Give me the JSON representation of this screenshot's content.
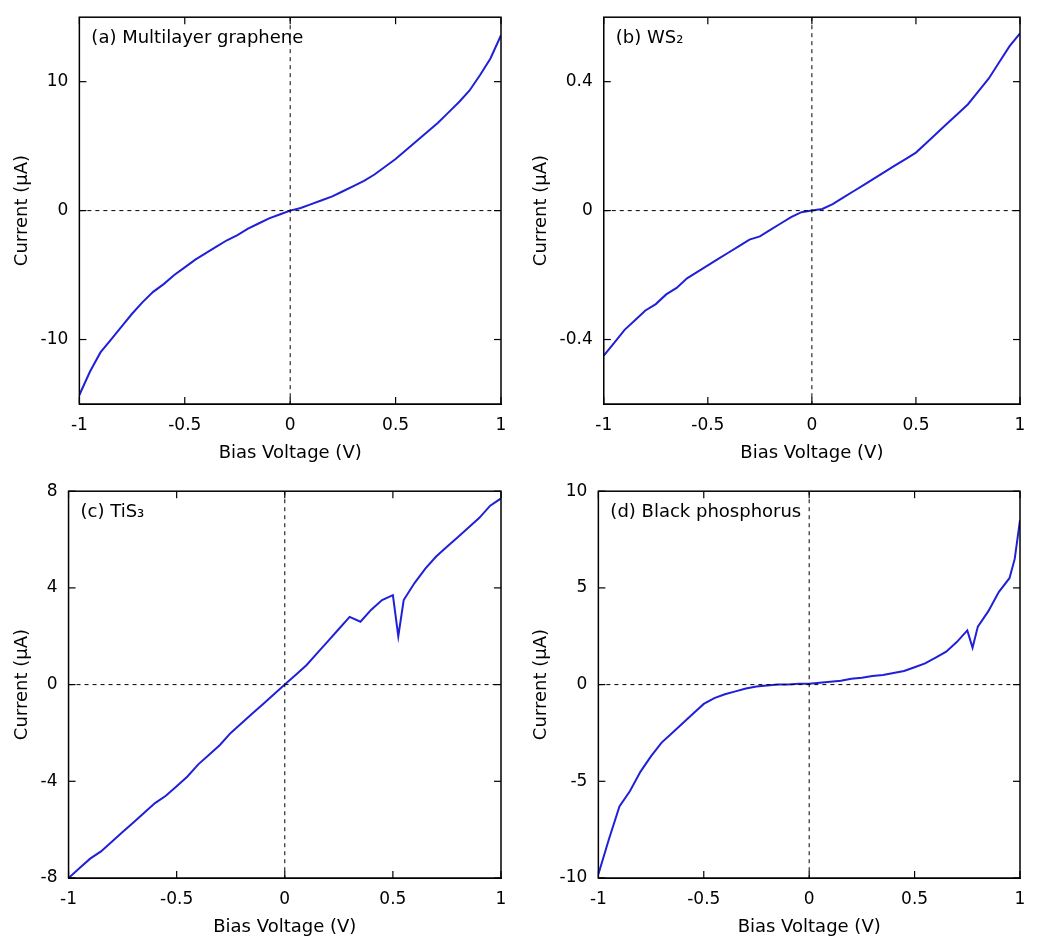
{
  "chart_data": [
    {
      "type": "line",
      "title": "(a) Multilayer graphene",
      "x_label": "Bias Voltage (V)",
      "y_label": "Current (μA)",
      "color": "#2020d8",
      "xlim": [
        -1,
        1
      ],
      "xticks": [
        -1,
        -0.5,
        0,
        0.5,
        1
      ],
      "ylim": [
        -15,
        15
      ],
      "yticks": [
        -10,
        0,
        10
      ],
      "ref_lines": {
        "x": 0,
        "y": 0
      },
      "x": [
        -1,
        -0.95,
        -0.9,
        -0.85,
        -0.8,
        -0.75,
        -0.7,
        -0.65,
        -0.6,
        -0.55,
        -0.5,
        -0.45,
        -0.4,
        -0.35,
        -0.3,
        -0.25,
        -0.2,
        -0.15,
        -0.1,
        -0.05,
        0,
        0.05,
        0.1,
        0.15,
        0.2,
        0.25,
        0.3,
        0.35,
        0.4,
        0.45,
        0.5,
        0.55,
        0.6,
        0.65,
        0.7,
        0.75,
        0.8,
        0.85,
        0.9,
        0.95,
        1
      ],
      "values": [
        -14.3,
        -12.5,
        -11.0,
        -10.0,
        -9.0,
        -8.0,
        -7.1,
        -6.3,
        -5.7,
        -5.0,
        -4.4,
        -3.8,
        -3.3,
        -2.8,
        -2.3,
        -1.9,
        -1.4,
        -1.0,
        -0.6,
        -0.3,
        0,
        0.2,
        0.5,
        0.8,
        1.1,
        1.5,
        1.9,
        2.3,
        2.8,
        3.4,
        4.0,
        4.7,
        5.4,
        6.1,
        6.8,
        7.6,
        8.4,
        9.3,
        10.5,
        11.8,
        13.6
      ]
    },
    {
      "type": "line",
      "title": "(b) WS₂",
      "x_label": "Bias Voltage (V)",
      "y_label": "Current (μA)",
      "color": "#2020d8",
      "xlim": [
        -1,
        1
      ],
      "xticks": [
        -1,
        -0.5,
        0,
        0.5,
        1
      ],
      "ylim": [
        -0.6,
        0.6
      ],
      "yticks": [
        -0.4,
        0,
        0.4
      ],
      "ref_lines": {
        "x": 0,
        "y": 0
      },
      "x": [
        -1,
        -0.95,
        -0.9,
        -0.85,
        -0.8,
        -0.75,
        -0.7,
        -0.65,
        -0.6,
        -0.55,
        -0.5,
        -0.45,
        -0.4,
        -0.35,
        -0.3,
        -0.25,
        -0.2,
        -0.15,
        -0.1,
        -0.05,
        0,
        0.05,
        0.1,
        0.15,
        0.2,
        0.25,
        0.3,
        0.35,
        0.4,
        0.45,
        0.5,
        0.55,
        0.6,
        0.65,
        0.7,
        0.75,
        0.8,
        0.85,
        0.9,
        0.95,
        1
      ],
      "values": [
        -0.45,
        -0.41,
        -0.37,
        -0.34,
        -0.31,
        -0.29,
        -0.26,
        -0.24,
        -0.21,
        -0.19,
        -0.17,
        -0.15,
        -0.13,
        -0.11,
        -0.09,
        -0.08,
        -0.06,
        -0.04,
        -0.02,
        -0.005,
        0,
        0.005,
        0.02,
        0.04,
        0.06,
        0.08,
        0.1,
        0.12,
        0.14,
        0.16,
        0.18,
        0.21,
        0.24,
        0.27,
        0.3,
        0.33,
        0.37,
        0.41,
        0.46,
        0.51,
        0.55
      ]
    },
    {
      "type": "line",
      "title": "(c) TiS₃",
      "x_label": "Bias Voltage (V)",
      "y_label": "Current (μA)",
      "color": "#2020d8",
      "xlim": [
        -1,
        1
      ],
      "xticks": [
        -1,
        -0.5,
        0,
        0.5,
        1
      ],
      "ylim": [
        -8,
        8
      ],
      "yticks": [
        -8,
        -4,
        0,
        4,
        8
      ],
      "ref_lines": {
        "x": 0,
        "y": 0
      },
      "x": [
        -1,
        -0.95,
        -0.9,
        -0.85,
        -0.8,
        -0.75,
        -0.7,
        -0.65,
        -0.6,
        -0.55,
        -0.5,
        -0.45,
        -0.4,
        -0.35,
        -0.3,
        -0.25,
        -0.2,
        -0.15,
        -0.1,
        -0.05,
        0,
        0.05,
        0.1,
        0.15,
        0.2,
        0.25,
        0.3,
        0.35,
        0.4,
        0.45,
        0.5,
        0.525,
        0.55,
        0.6,
        0.65,
        0.7,
        0.75,
        0.8,
        0.85,
        0.9,
        0.95,
        1
      ],
      "values": [
        -8.0,
        -7.6,
        -7.2,
        -6.9,
        -6.5,
        -6.1,
        -5.7,
        -5.3,
        -4.9,
        -4.6,
        -4.2,
        -3.8,
        -3.3,
        -2.9,
        -2.5,
        -2.0,
        -1.6,
        -1.2,
        -0.8,
        -0.4,
        0,
        0.4,
        0.8,
        1.3,
        1.8,
        2.3,
        2.8,
        2.6,
        3.1,
        3.5,
        3.7,
        2.0,
        3.5,
        4.2,
        4.8,
        5.3,
        5.7,
        6.1,
        6.5,
        6.9,
        7.4,
        7.7
      ]
    },
    {
      "type": "line",
      "title": "(d) Black phosphorus",
      "x_label": "Bias Voltage (V)",
      "y_label": "Current (μA)",
      "color": "#2020d8",
      "xlim": [
        -1,
        1
      ],
      "xticks": [
        -1,
        -0.5,
        0,
        0.5,
        1
      ],
      "ylim": [
        -10,
        10
      ],
      "yticks": [
        -10,
        -5,
        0,
        5,
        10
      ],
      "ref_lines": {
        "x": 0,
        "y": 0
      },
      "x": [
        -1,
        -0.95,
        -0.9,
        -0.85,
        -0.8,
        -0.75,
        -0.7,
        -0.65,
        -0.6,
        -0.55,
        -0.5,
        -0.45,
        -0.4,
        -0.35,
        -0.3,
        -0.25,
        -0.2,
        -0.15,
        -0.1,
        -0.05,
        0,
        0.05,
        0.1,
        0.15,
        0.2,
        0.25,
        0.3,
        0.35,
        0.4,
        0.45,
        0.5,
        0.55,
        0.6,
        0.65,
        0.7,
        0.75,
        0.775,
        0.8,
        0.85,
        0.9,
        0.95,
        0.975,
        1
      ],
      "values": [
        -9.8,
        -8.0,
        -6.3,
        -5.5,
        -4.5,
        -3.7,
        -3.0,
        -2.5,
        -2.0,
        -1.5,
        -1.0,
        -0.7,
        -0.5,
        -0.35,
        -0.2,
        -0.1,
        -0.05,
        0,
        0,
        0.05,
        0.05,
        0.1,
        0.15,
        0.2,
        0.3,
        0.35,
        0.45,
        0.5,
        0.6,
        0.7,
        0.9,
        1.1,
        1.4,
        1.7,
        2.2,
        2.8,
        1.9,
        3.0,
        3.8,
        4.8,
        5.5,
        6.5,
        8.5
      ]
    }
  ]
}
